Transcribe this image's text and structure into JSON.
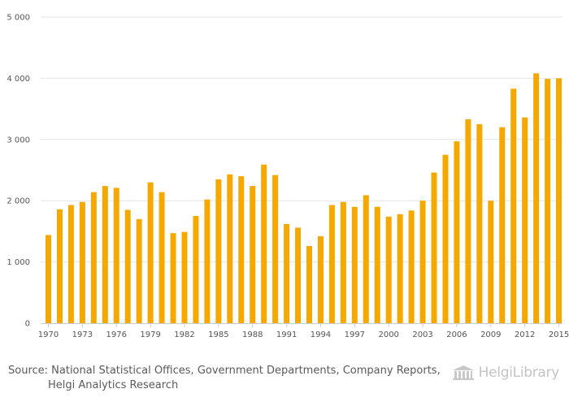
{
  "chart_data": {
    "type": "bar",
    "title": "",
    "xlabel": "",
    "ylabel": "",
    "ylim": [
      0,
      5000
    ],
    "yticks": [
      0,
      1000,
      2000,
      3000,
      4000,
      5000
    ],
    "ytick_labels": [
      "0",
      "1 000",
      "2 000",
      "3 000",
      "4 000",
      "5 000"
    ],
    "grid": true,
    "bar_color": "#f5a800",
    "categories": [
      1970,
      1971,
      1972,
      1973,
      1974,
      1975,
      1976,
      1977,
      1978,
      1979,
      1980,
      1981,
      1982,
      1983,
      1984,
      1985,
      1986,
      1987,
      1988,
      1989,
      1990,
      1991,
      1992,
      1993,
      1994,
      1995,
      1996,
      1997,
      1998,
      1999,
      2000,
      2001,
      2002,
      2003,
      2004,
      2005,
      2006,
      2007,
      2008,
      2009,
      2010,
      2011,
      2012,
      2013,
      2014,
      2015
    ],
    "xtick_labels": [
      "1970",
      "1973",
      "1976",
      "1979",
      "1982",
      "1985",
      "1988",
      "1991",
      "1994",
      "1997",
      "2000",
      "2003",
      "2006",
      "2009",
      "2012",
      "2015"
    ],
    "values": [
      1440,
      1860,
      1930,
      1980,
      2140,
      2240,
      2210,
      1850,
      1700,
      2300,
      2140,
      1470,
      1490,
      1750,
      2020,
      2350,
      2430,
      2400,
      2240,
      2590,
      2420,
      1620,
      1560,
      1260,
      1420,
      1930,
      1980,
      1900,
      2090,
      1900,
      1740,
      1780,
      1840,
      2000,
      2460,
      2750,
      2970,
      3330,
      3250,
      2000,
      3200,
      3830,
      3360,
      4080,
      3990,
      4000
    ]
  },
  "footer": {
    "source_line1": "Source: National Statistical Offices, Government Departments, Company Reports,",
    "source_line2": "Helgi Analytics Research",
    "brand": "HelgiLibrary"
  },
  "colors": {
    "grid": "#e6e6e6",
    "axis": "#cccccc",
    "text": "#555555"
  }
}
